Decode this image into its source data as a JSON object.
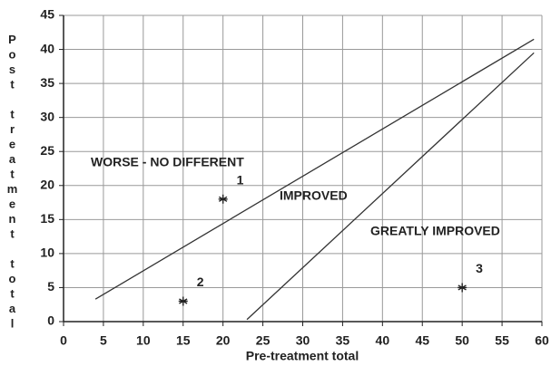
{
  "chart_data": {
    "type": "scatter",
    "xlabel": "Pre-treatment total",
    "ylabel": "Post treatment total",
    "xlim": [
      0,
      60
    ],
    "ylim": [
      0,
      45
    ],
    "xticks": [
      0,
      5,
      10,
      15,
      20,
      25,
      30,
      35,
      40,
      45,
      50,
      55,
      60
    ],
    "yticks": [
      0,
      5,
      10,
      15,
      20,
      25,
      30,
      35,
      40,
      45
    ],
    "grid": true,
    "series": [
      {
        "x": [
          20,
          15,
          50
        ],
        "values": [
          18,
          3,
          5
        ],
        "labels": [
          "1",
          "2",
          "3"
        ],
        "color": "#222222"
      }
    ],
    "lines": [
      {
        "x": [
          4,
          59
        ],
        "values": [
          3.3,
          41.5
        ],
        "color": "#333333"
      },
      {
        "x": [
          23,
          59
        ],
        "values": [
          0.3,
          39.5
        ],
        "color": "#333333"
      }
    ],
    "annotations": [
      "WORSE - NO DIFFERENT",
      "IMPROVED",
      "GREATLY IMPROVED"
    ]
  }
}
